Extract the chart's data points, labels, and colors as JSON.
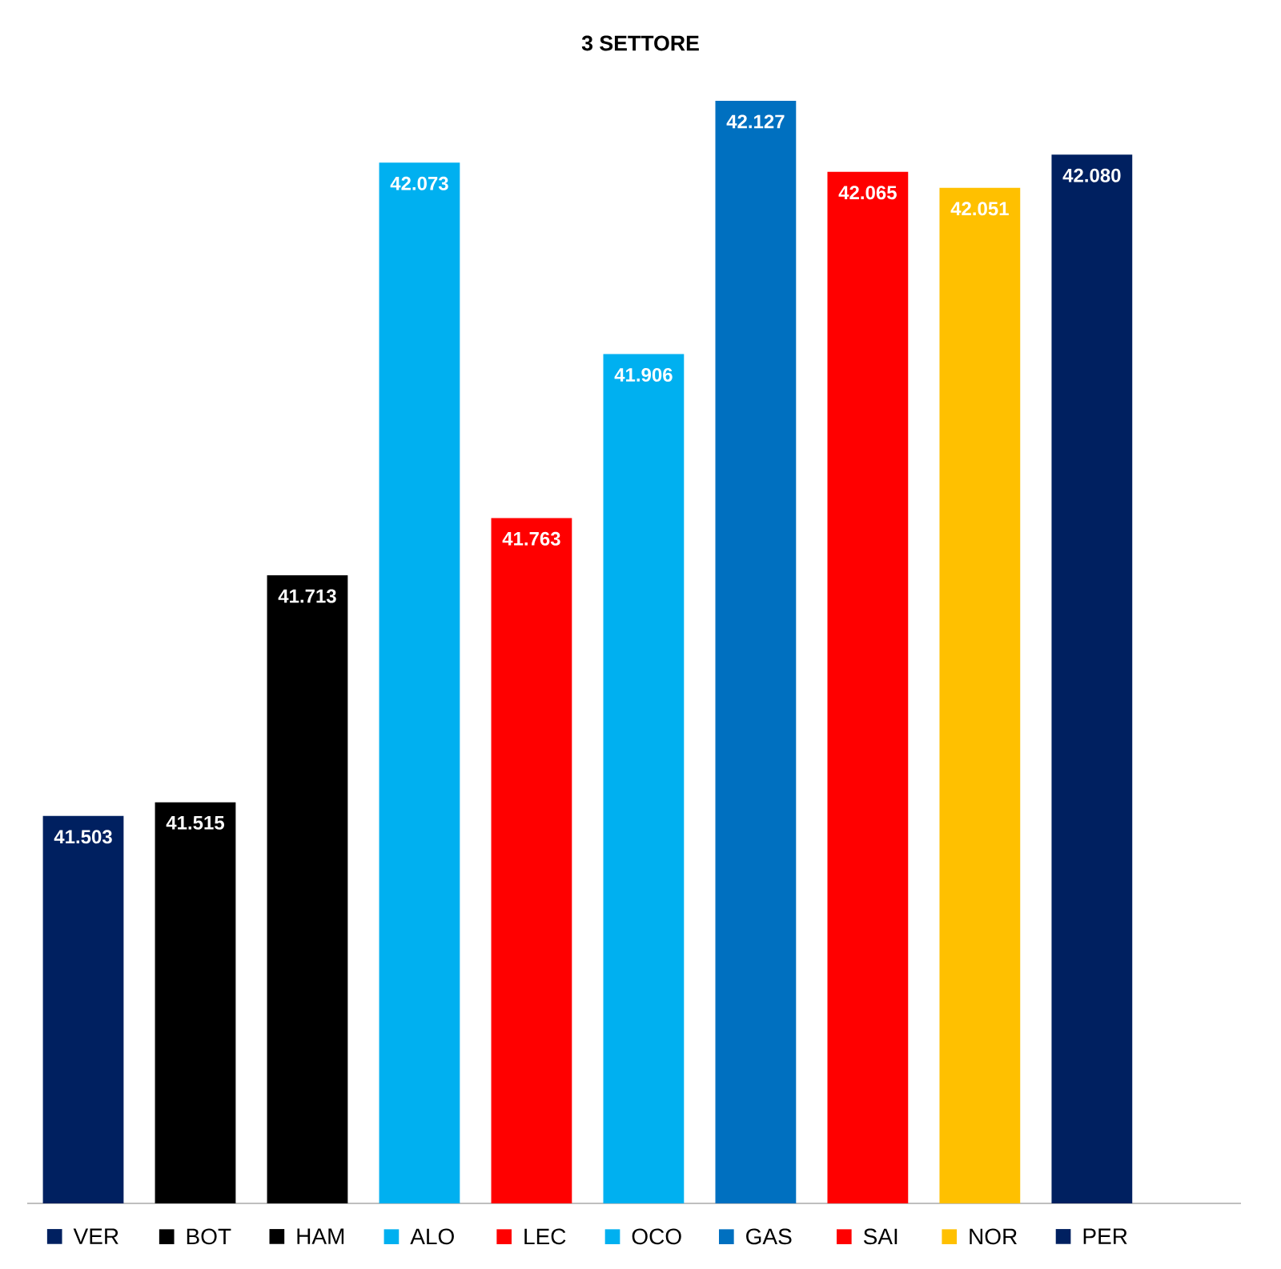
{
  "chart_data": {
    "type": "bar",
    "title": "3 SETTORE",
    "categories": [
      "VER",
      "BOT",
      "HAM",
      "ALO",
      "LEC",
      "OCO",
      "GAS",
      "SAI",
      "NOR",
      "PER"
    ],
    "values": [
      41.503,
      41.515,
      41.713,
      42.073,
      41.763,
      41.906,
      42.127,
      42.065,
      42.051,
      42.08
    ],
    "value_labels": [
      "41.503",
      "41.515",
      "41.713",
      "42.073",
      "41.763",
      "41.906",
      "42.127",
      "42.065",
      "42.051",
      "42.080"
    ],
    "colors": [
      "#002060",
      "#000000",
      "#000000",
      "#00b0f0",
      "#ff0000",
      "#00b0f0",
      "#0070c0",
      "#ff0000",
      "#ffc000",
      "#002060"
    ],
    "ylim": [
      41.165,
      42.127
    ]
  }
}
